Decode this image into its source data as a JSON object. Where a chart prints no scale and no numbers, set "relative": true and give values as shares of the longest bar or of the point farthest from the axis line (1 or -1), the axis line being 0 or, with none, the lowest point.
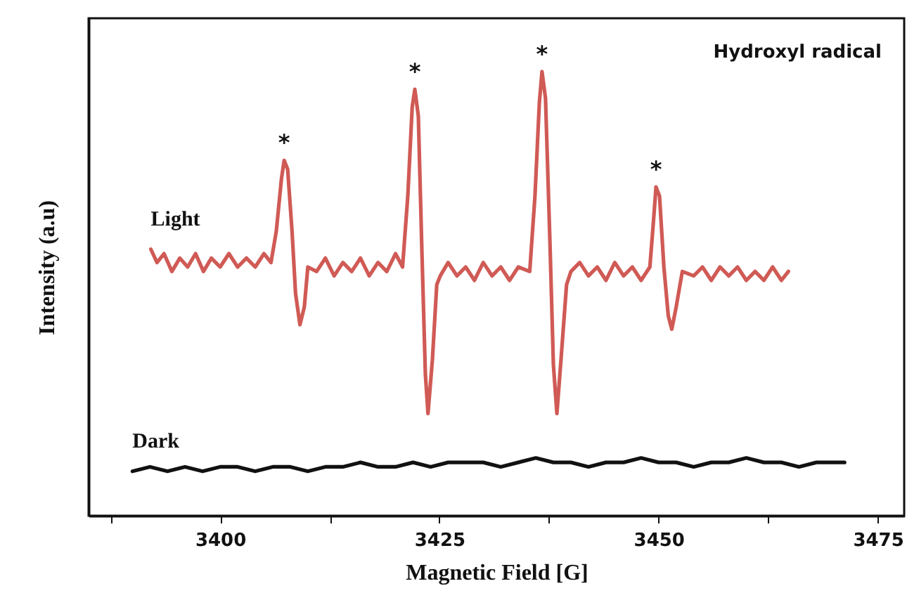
{
  "chart_data": {
    "type": "line",
    "relative": true,
    "xlabel": "Magnetic  Field [G]",
    "ylabel": "Intensity (a.u)",
    "xlim": [
      3385,
      3478
    ],
    "xticks": [
      {
        "value": 3387.5,
        "label": null
      },
      3400,
      {
        "value": 3412.5,
        "label": null
      },
      3425,
      {
        "value": 3437.5,
        "label": null
      },
      3450,
      {
        "value": 3462.5,
        "label": null
      },
      3475
    ],
    "grid": false,
    "marker": "none",
    "line_style": "solid",
    "annotations": [
      "Hydroxyl radical",
      {
        "text": "*",
        "x": 3407.3,
        "y": 0.8
      },
      {
        "text": "*",
        "x": 3422.2,
        "y": 0.96
      },
      {
        "text": "*",
        "x": 3436.7,
        "y": 1.0
      },
      {
        "text": "*",
        "x": 3449.7,
        "y": 0.74
      }
    ],
    "series": [
      {
        "name": "Light",
        "color": "#d05a55",
        "x": [
          3392.1,
          3392.8,
          3393.6,
          3394.5,
          3395.4,
          3396.3,
          3397.2,
          3398.1,
          3399.0,
          3400.0,
          3401.0,
          3402.0,
          3403.0,
          3404.0,
          3405.0,
          3405.8,
          3406.4,
          3407.0,
          3407.3,
          3407.7,
          3408.2,
          3408.6,
          3409.1,
          3409.6,
          3410.0,
          3411.0,
          3412.0,
          3413.0,
          3414.0,
          3415.0,
          3416.0,
          3417.0,
          3418.0,
          3419.0,
          3420.0,
          3420.8,
          3421.4,
          3421.9,
          3422.2,
          3422.6,
          3423.0,
          3423.4,
          3423.7,
          3424.2,
          3424.7,
          3425.1,
          3426.0,
          3427.0,
          3428.0,
          3429.0,
          3430.0,
          3431.0,
          3432.0,
          3433.0,
          3434.0,
          3435.3,
          3435.9,
          3436.4,
          3436.7,
          3437.1,
          3437.6,
          3438.0,
          3438.4,
          3438.9,
          3439.5,
          3440.0,
          3441.0,
          3442.0,
          3443.0,
          3444.0,
          3445.0,
          3446.0,
          3447.0,
          3448.0,
          3449.0,
          3449.4,
          3449.7,
          3450.1,
          3450.6,
          3451.1,
          3451.5,
          3452.0,
          3452.7,
          3454.0,
          3455.0,
          3456.0,
          3457.0,
          3458.0,
          3459.0,
          3460.0,
          3461.0,
          3462.0,
          3463.0,
          3464.0,
          3464.8
        ],
        "values": [
          0.6,
          0.57,
          0.59,
          0.55,
          0.58,
          0.56,
          0.59,
          0.55,
          0.58,
          0.56,
          0.59,
          0.56,
          0.58,
          0.56,
          0.59,
          0.57,
          0.64,
          0.76,
          0.8,
          0.78,
          0.64,
          0.5,
          0.43,
          0.47,
          0.56,
          0.55,
          0.58,
          0.54,
          0.57,
          0.55,
          0.58,
          0.54,
          0.57,
          0.55,
          0.59,
          0.56,
          0.72,
          0.92,
          0.96,
          0.9,
          0.6,
          0.32,
          0.23,
          0.35,
          0.52,
          0.54,
          0.57,
          0.54,
          0.56,
          0.53,
          0.57,
          0.54,
          0.56,
          0.53,
          0.56,
          0.55,
          0.72,
          0.93,
          1.0,
          0.94,
          0.62,
          0.34,
          0.23,
          0.36,
          0.52,
          0.55,
          0.57,
          0.54,
          0.56,
          0.53,
          0.57,
          0.54,
          0.56,
          0.53,
          0.56,
          0.66,
          0.74,
          0.72,
          0.56,
          0.45,
          0.42,
          0.47,
          0.55,
          0.54,
          0.56,
          0.53,
          0.56,
          0.54,
          0.56,
          0.53,
          0.55,
          0.53,
          0.56,
          0.53,
          0.55
        ]
      },
      {
        "name": "Dark",
        "color": "#111111",
        "x": [
          3390,
          3392,
          3394,
          3396,
          3398,
          3400,
          3402,
          3404,
          3406,
          3408,
          3410,
          3412,
          3414,
          3416,
          3418,
          3420,
          3422,
          3424,
          3426,
          3428,
          3430,
          3432,
          3434,
          3436,
          3438,
          3440,
          3442,
          3444,
          3446,
          3448,
          3450,
          3452,
          3454,
          3456,
          3458,
          3460,
          3462,
          3464,
          3466,
          3468,
          3470,
          3471.2
        ],
        "values": [
          0.1,
          0.11,
          0.1,
          0.11,
          0.1,
          0.11,
          0.11,
          0.1,
          0.11,
          0.11,
          0.1,
          0.11,
          0.11,
          0.12,
          0.11,
          0.11,
          0.12,
          0.11,
          0.12,
          0.12,
          0.12,
          0.11,
          0.12,
          0.13,
          0.12,
          0.12,
          0.11,
          0.12,
          0.12,
          0.13,
          0.12,
          0.12,
          0.11,
          0.12,
          0.12,
          0.13,
          0.12,
          0.12,
          0.11,
          0.12,
          0.12,
          0.12
        ]
      }
    ]
  }
}
